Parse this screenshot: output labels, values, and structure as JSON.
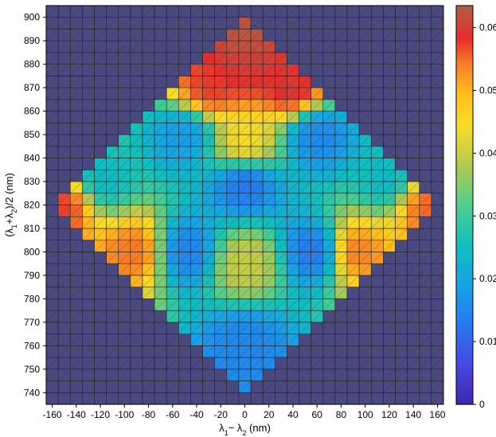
{
  "chart_data": {
    "type": "heatmap",
    "x_axis": {
      "label": "λ1 − λ2 (nm)",
      "label_parts": {
        "lambda": "λ",
        "sub1": "1",
        "minus": "− ",
        "sub2": "2",
        "unit": " (nm)"
      },
      "range": [
        -165,
        165
      ],
      "cell_step": 10,
      "ticks": [
        -160,
        -140,
        -120,
        -100,
        -80,
        -60,
        -40,
        -20,
        0,
        20,
        40,
        60,
        80,
        100,
        120,
        140,
        160
      ]
    },
    "y_axis": {
      "label": "(λ1 + λ2)/2 (nm)",
      "label_parts": {
        "open": "(",
        "lambda": "λ",
        "sub1": "1",
        "plus": "+",
        "sub2": "2",
        "rest": ")/2 (nm)"
      },
      "range": [
        735,
        905
      ],
      "cell_step": 5,
      "ticks": [
        740,
        750,
        760,
        770,
        780,
        790,
        800,
        810,
        820,
        830,
        840,
        850,
        860,
        870,
        880,
        890,
        900
      ]
    },
    "colorbar": {
      "range": [
        0,
        0.0635
      ],
      "ticks": [
        0,
        0.01,
        0.02,
        0.03,
        0.04,
        0.05,
        0.06
      ],
      "tick_labels": [
        "0",
        "0.01",
        "0.02",
        "0.03",
        "0.04",
        "0.05",
        "0.06"
      ],
      "colormap": "parula-like",
      "nan_color": "#4a4a80"
    },
    "background_value": 0,
    "support": "diamond |x|/160 + |y-820|/80 <= 1",
    "values_description": "Intensity values per cell (0 outside diamond). Pattern: high (~0.045-0.063) near top ridge (850-890) and outer edges; low (~0.015-0.025) blue lobes around x=±40..±60 at y≈800 and y≈850, and near x=0 at y≈830 and y≈760; yellow (~0.038-0.042) near center x=0,y≈795.",
    "features": [
      {
        "x": 0,
        "y": 890,
        "value": 0.063
      },
      {
        "x": 0,
        "y": 880,
        "value": 0.06
      },
      {
        "x": -30,
        "y": 870,
        "value": 0.058
      },
      {
        "x": 40,
        "y": 870,
        "value": 0.06
      },
      {
        "x": -150,
        "y": 820,
        "value": 0.058
      },
      {
        "x": 150,
        "y": 820,
        "value": 0.056
      },
      {
        "x": 60,
        "y": 850,
        "value": 0.015
      },
      {
        "x": -50,
        "y": 850,
        "value": 0.018
      },
      {
        "x": 0,
        "y": 830,
        "value": 0.012
      },
      {
        "x": -50,
        "y": 800,
        "value": 0.014
      },
      {
        "x": 60,
        "y": 800,
        "value": 0.012
      },
      {
        "x": 0,
        "y": 795,
        "value": 0.04
      },
      {
        "x": 0,
        "y": 760,
        "value": 0.015
      },
      {
        "x": -120,
        "y": 830,
        "value": 0.024
      },
      {
        "x": 120,
        "y": 830,
        "value": 0.024
      },
      {
        "x": -90,
        "y": 800,
        "value": 0.055
      },
      {
        "x": 90,
        "y": 800,
        "value": 0.055
      },
      {
        "x": 0,
        "y": 845,
        "value": 0.045
      }
    ]
  }
}
